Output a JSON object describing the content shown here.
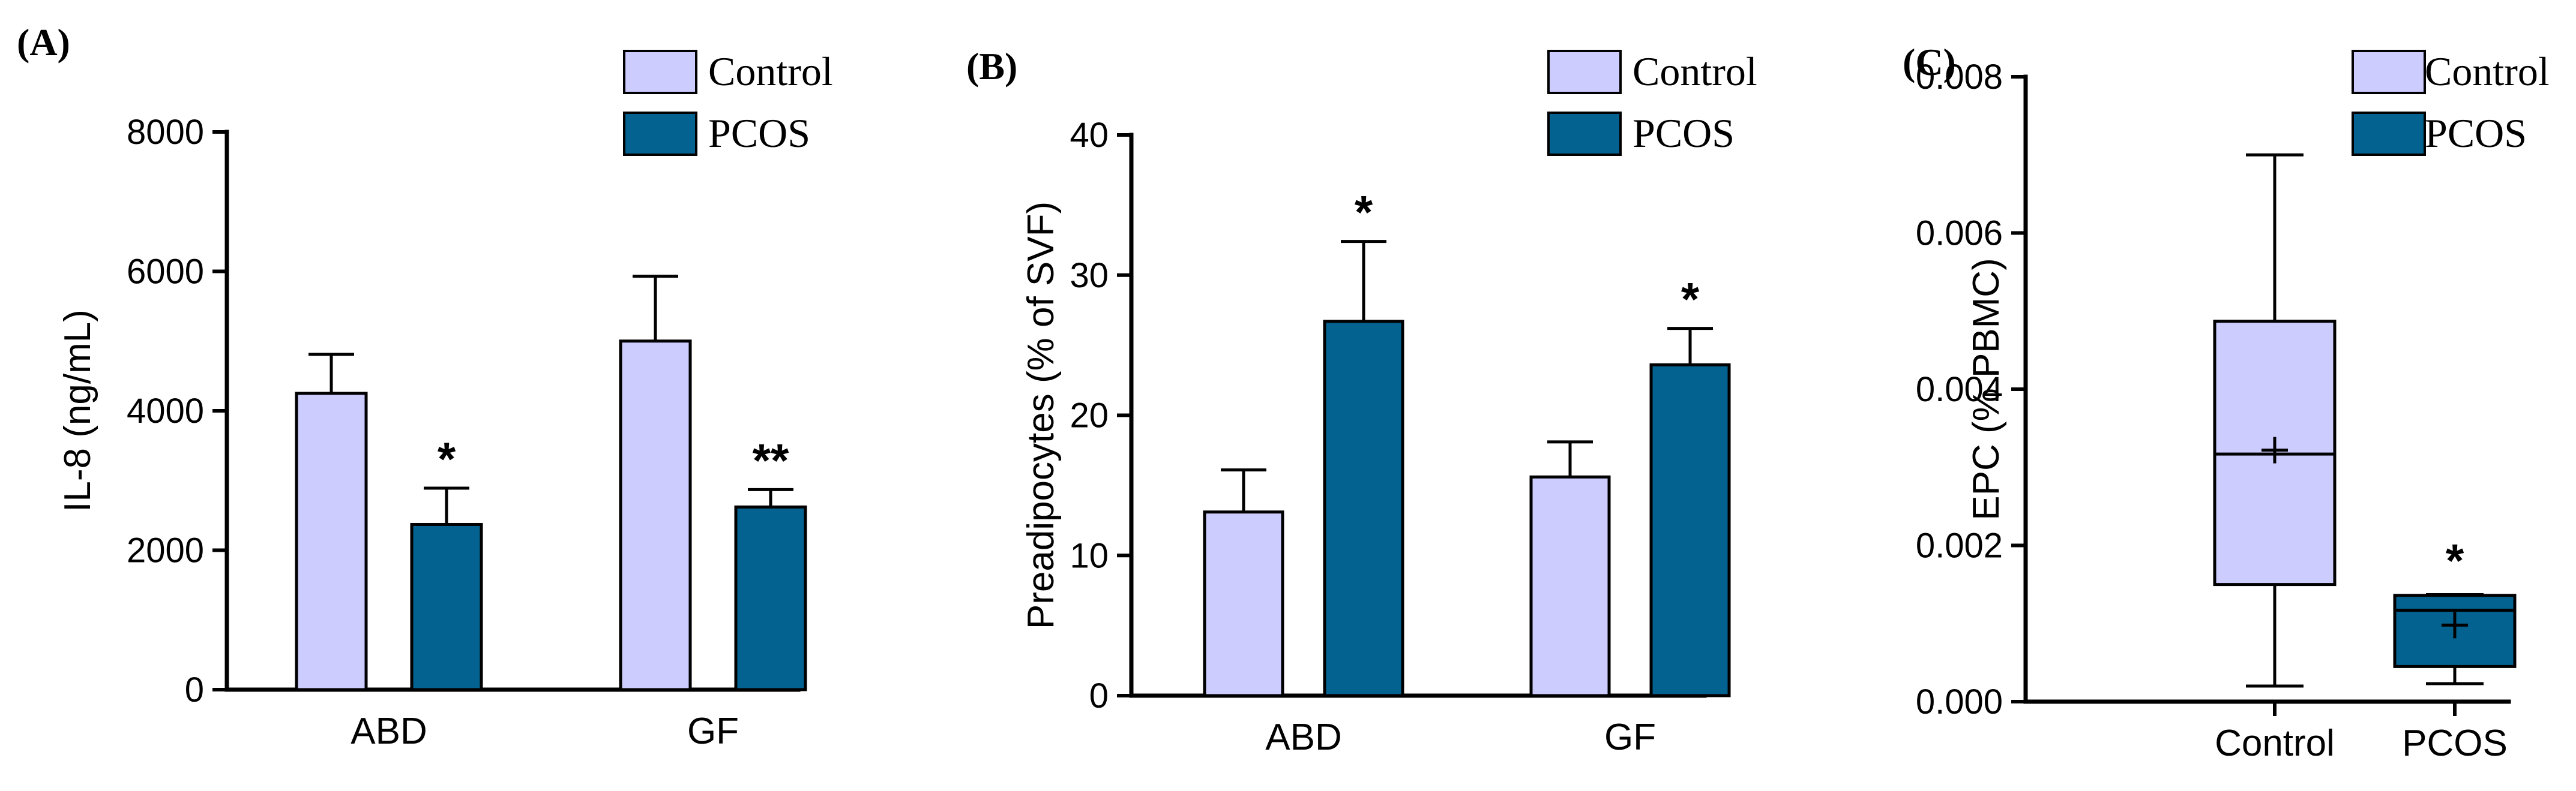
{
  "colors": {
    "control": "#ccccff",
    "pcos": "#03628f"
  },
  "chart_data": [
    {
      "panel": "(A)",
      "type": "bar",
      "ylabel": "IL-8 (ng/mL)",
      "ylim": [
        0,
        8000
      ],
      "yticks": [
        0,
        2000,
        4000,
        6000,
        8000
      ],
      "ytick_labels": [
        "0",
        "2000",
        "4000",
        "6000",
        "8000"
      ],
      "categories": [
        "ABD",
        "GF"
      ],
      "legend": [
        "Control",
        "PCOS"
      ],
      "series": [
        {
          "name": "Control",
          "values": [
            4250,
            5000
          ],
          "errors": [
            560,
            930
          ]
        },
        {
          "name": "PCOS",
          "values": [
            2370,
            2620
          ],
          "errors": [
            520,
            250
          ]
        }
      ],
      "annotations": [
        {
          "category": "ABD",
          "series": "PCOS",
          "text": "*"
        },
        {
          "category": "GF",
          "series": "PCOS",
          "text": "**"
        }
      ]
    },
    {
      "panel": "(B)",
      "type": "bar",
      "ylabel": "Preadipocytes (% of SVF)",
      "ylim": [
        0,
        40
      ],
      "yticks": [
        0,
        10,
        20,
        30,
        40
      ],
      "ytick_labels": [
        "0",
        "10",
        "20",
        "30",
        "40"
      ],
      "categories": [
        "ABD",
        "GF"
      ],
      "legend": [
        "Control",
        "PCOS"
      ],
      "series": [
        {
          "name": "Control",
          "values": [
            13.1,
            15.6
          ],
          "errors": [
            3.0,
            2.5
          ]
        },
        {
          "name": "PCOS",
          "values": [
            26.7,
            23.6
          ],
          "errors": [
            5.7,
            2.6
          ]
        }
      ],
      "annotations": [
        {
          "category": "ABD",
          "series": "PCOS",
          "text": "*"
        },
        {
          "category": "GF",
          "series": "PCOS",
          "text": "*"
        }
      ]
    },
    {
      "panel": "(C)",
      "type": "box",
      "ylabel": "EPC (% PBMC)",
      "ylim": [
        0,
        0.008
      ],
      "yticks": [
        0,
        0.002,
        0.004,
        0.006,
        0.008
      ],
      "ytick_labels": [
        "0.000",
        "0.002",
        "0.004",
        "0.006",
        "0.008"
      ],
      "categories": [
        "Control",
        "PCOS"
      ],
      "legend": [
        "Control",
        "PCOS"
      ],
      "boxes": [
        {
          "name": "Control",
          "min": 0.0002,
          "q1": 0.0015,
          "median": 0.00317,
          "q3": 0.00487,
          "max": 0.007,
          "mean": 0.00322
        },
        {
          "name": "PCOS",
          "min": 0.00023,
          "q1": 0.00045,
          "median": 0.00117,
          "q3": 0.00136,
          "max": 0.00137,
          "mean": 0.00098
        }
      ],
      "annotations": [
        {
          "category": "PCOS",
          "text": "*"
        }
      ]
    }
  ]
}
